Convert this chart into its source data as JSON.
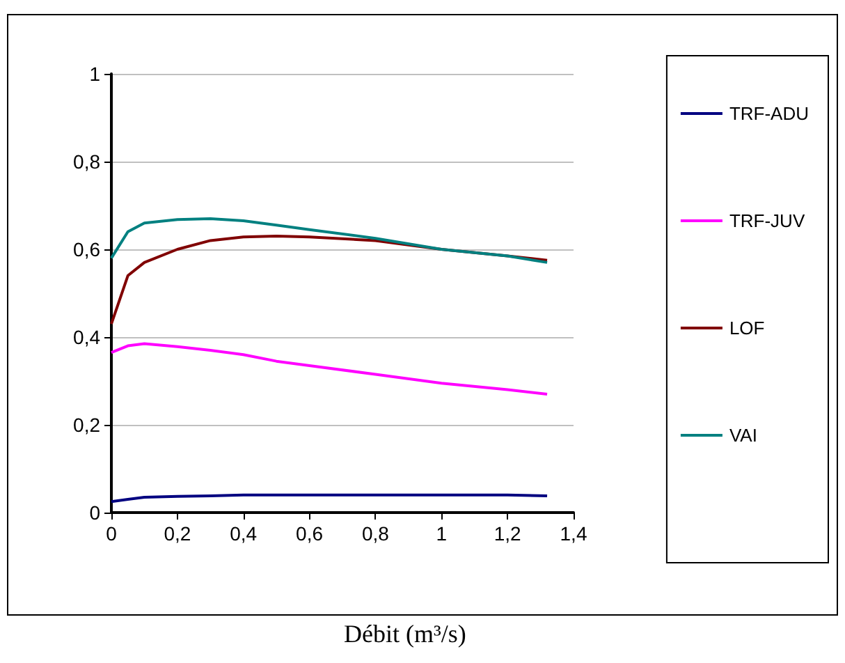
{
  "chart_data": {
    "type": "line",
    "xlabel": "Débit (m³/s)",
    "x": [
      0,
      0.05,
      0.1,
      0.2,
      0.3,
      0.4,
      0.5,
      0.6,
      0.8,
      1.0,
      1.2,
      1.32
    ],
    "series": [
      {
        "name": "TRF-ADU",
        "color": "#000080",
        "values": [
          0.025,
          0.03,
          0.035,
          0.037,
          0.038,
          0.04,
          0.04,
          0.04,
          0.04,
          0.04,
          0.04,
          0.038
        ]
      },
      {
        "name": "TRF-JUV",
        "color": "#ff00ff",
        "values": [
          0.365,
          0.38,
          0.385,
          0.378,
          0.37,
          0.36,
          0.345,
          0.335,
          0.315,
          0.295,
          0.28,
          0.27
        ]
      },
      {
        "name": "LOF",
        "color": "#800000",
        "values": [
          0.43,
          0.54,
          0.57,
          0.6,
          0.62,
          0.628,
          0.63,
          0.628,
          0.62,
          0.6,
          0.585,
          0.575
        ]
      },
      {
        "name": "VAI",
        "color": "#008080",
        "values": [
          0.58,
          0.64,
          0.66,
          0.668,
          0.67,
          0.665,
          0.655,
          0.645,
          0.625,
          0.6,
          0.585,
          0.57
        ]
      }
    ],
    "xlim": [
      0,
      1.4
    ],
    "xticks": [
      0,
      {
        "value": 0.2,
        "label": "0,2"
      },
      {
        "value": 0.4,
        "label": "0,4"
      },
      {
        "value": 0.6,
        "label": "0,6"
      },
      {
        "value": 0.8,
        "label": "0,8"
      },
      1,
      {
        "value": 1.2,
        "label": "1,2"
      },
      {
        "value": 1.4,
        "label": "1,4"
      }
    ],
    "ylim": [
      0,
      1
    ],
    "yticks": [
      0,
      {
        "value": 0.2,
        "label": "0,2"
      },
      {
        "value": 0.4,
        "label": "0,4"
      },
      {
        "value": 0.6,
        "label": "0,6"
      },
      {
        "value": 0.8,
        "label": "0,8"
      },
      1
    ],
    "grid": "y",
    "legend": "right",
    "marker": "none",
    "line_style": "solid"
  }
}
